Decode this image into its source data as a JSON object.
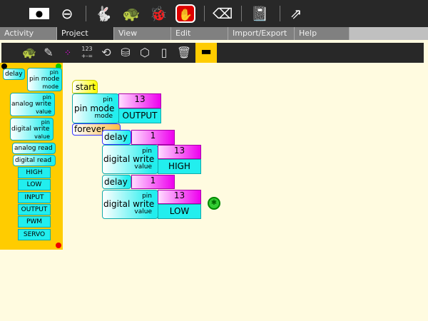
{
  "toolbar": {
    "icons": [
      "stop-activity-icon",
      "keep-icon",
      "run-fast-icon",
      "run-step-icon",
      "debug-icon",
      "stop-icon",
      "clear-icon",
      "load-sample-icon",
      "share-icon"
    ]
  },
  "tabs": [
    "Activity",
    "Project",
    "View",
    "Edit",
    "Import/Export",
    "Help"
  ],
  "selected_tab": "Project",
  "palette_toolbar": {
    "icons": [
      "turtle-palette-icon",
      "pen-palette-icon",
      "colors-palette-icon",
      "numbers-palette-icon",
      "flow-palette-icon",
      "blocks-palette-icon",
      "extras-palette-icon",
      "portfolio-palette-icon",
      "trash-icon",
      "arduino-palette-icon"
    ],
    "numbers_text": [
      "123",
      "+-="
    ],
    "selected": "arduino-palette-icon"
  },
  "palette": {
    "delay": "delay",
    "pin_mode": "pin mode",
    "pin": "pin",
    "mode": "mode",
    "value": "value",
    "analog_write": "analog write",
    "digital_write": "digital write",
    "analog_read": "analog read",
    "digital_read": "digital read",
    "constants": [
      "HIGH",
      "LOW",
      "INPUT",
      "OUTPUT",
      "PWM",
      "SERVO"
    ]
  },
  "program": {
    "start": "start",
    "pin_mode": "pin mode",
    "pin": "pin",
    "mode": "mode",
    "value": "value",
    "pin_number": "13",
    "mode_value": "OUTPUT",
    "forever": "forever",
    "delay": "delay",
    "delay_value": "1",
    "digital_write": "digital write",
    "high": "HIGH",
    "low": "LOW"
  },
  "colors": {
    "palette_bg": "#ffcc00",
    "canvas_bg": "#fffbe0",
    "arduino_block": "#22eeee",
    "number_block": "#ee00ee"
  }
}
